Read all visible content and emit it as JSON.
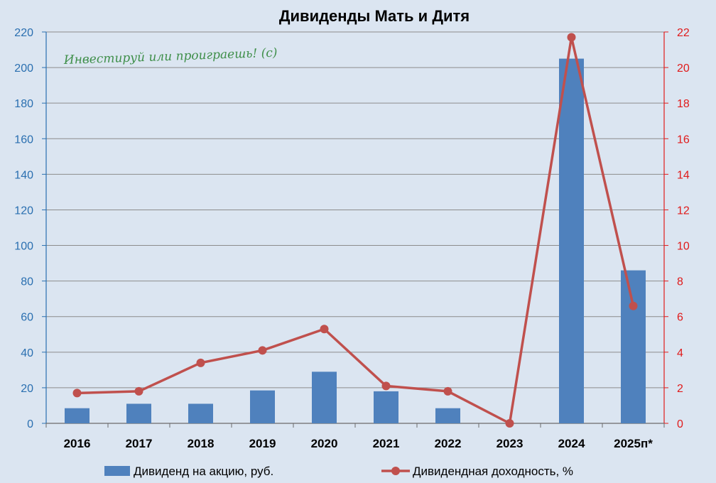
{
  "chart_data": {
    "type": "bar",
    "title": "Дивиденды Мать и Дитя",
    "annotation": "Инвестируй или проиграешь! (с)",
    "categories": [
      "2016",
      "2017",
      "2018",
      "2019",
      "2020",
      "2021",
      "2022",
      "2023",
      "2024",
      "2025п*"
    ],
    "series": [
      {
        "name": "Дивиденд на акцию, руб.",
        "type": "bar",
        "axis": "left",
        "color": "#4f81bd",
        "values": [
          8.5,
          11,
          11,
          18.5,
          29,
          18,
          8.5,
          0,
          205,
          86
        ]
      },
      {
        "name": "Дивидендная доходность, %",
        "type": "line",
        "axis": "right",
        "color": "#c0504d",
        "values": [
          1.7,
          1.8,
          3.4,
          4.1,
          5.3,
          2.1,
          1.8,
          0,
          21.7,
          6.6
        ]
      }
    ],
    "ylim_left": [
      0,
      220
    ],
    "yticks_left": [
      "0",
      "20",
      "40",
      "60",
      "80",
      "100",
      "120",
      "140",
      "160",
      "180",
      "200",
      "220"
    ],
    "ylim_right": [
      0,
      22
    ],
    "yticks_right": [
      "0",
      "2",
      "4",
      "6",
      "8",
      "10",
      "12",
      "14",
      "16",
      "18",
      "20",
      "22"
    ],
    "grid": true,
    "legend_position": "bottom",
    "left_axis_color": "#2a6fb0",
    "right_axis_color": "#e01b1b",
    "background_color": "#dbe5f1"
  }
}
